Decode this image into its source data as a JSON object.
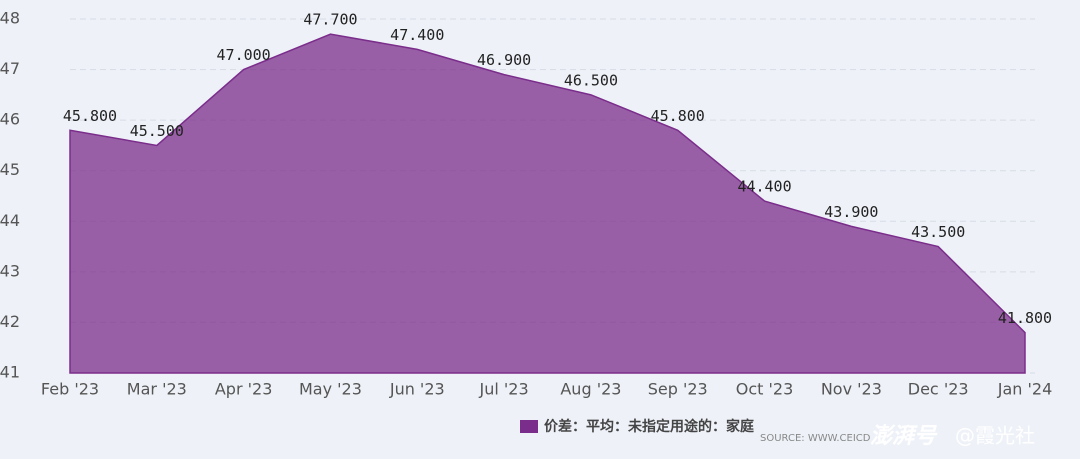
{
  "chart_data": {
    "type": "area",
    "categories": [
      "Feb '23",
      "Mar '23",
      "Apr '23",
      "May '23",
      "Jun '23",
      "Jul '23",
      "Aug '23",
      "Sep '23",
      "Oct '23",
      "Nov '23",
      "Dec '23",
      "Jan '24"
    ],
    "series": [
      {
        "name": "价差：平均：未指定用途的：家庭",
        "color": "#7b2d8b",
        "values": [
          45.8,
          45.5,
          47.0,
          47.7,
          47.4,
          46.9,
          46.5,
          45.8,
          44.4,
          43.9,
          43.5,
          41.8
        ],
        "value_labels": [
          "45.800",
          "45.500",
          "47.000",
          "47.700",
          "47.400",
          "46.900",
          "46.500",
          "45.800",
          "44.400",
          "43.900",
          "43.500",
          "41.800"
        ]
      }
    ],
    "ylim": [
      41,
      48
    ],
    "yticks": [
      41,
      42,
      43,
      44,
      45,
      46,
      47,
      48
    ],
    "grid": true,
    "legend": "bottom",
    "source": "SOURCE: WWW.CEICD",
    "watermark": "澎湃号",
    "watermark_account": "@霞光社"
  }
}
